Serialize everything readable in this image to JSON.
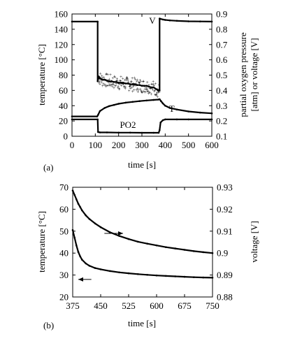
{
  "chart_data": [
    {
      "panel_label": "(a)",
      "type": "line",
      "xlabel": "time [s]",
      "ylabel_left": "temperature [°C]",
      "ylabel_right_line1": "partial oxygen pressure",
      "ylabel_right_line2": "[atm] or voltage [V]",
      "xlim": [
        0,
        600
      ],
      "ylim_left": [
        0,
        160
      ],
      "ylim_right": [
        0.1,
        0.9
      ],
      "x_ticks": [
        0,
        100,
        200,
        300,
        400,
        500,
        600
      ],
      "y_left_ticks": [
        0,
        20,
        40,
        60,
        80,
        100,
        120,
        140,
        160
      ],
      "y_right_ticks": [
        0.1,
        0.2,
        0.3,
        0.4,
        0.5,
        0.6,
        0.7,
        0.8,
        0.9
      ],
      "annotations": [
        {
          "text": "V",
          "x": 345,
          "y": 147,
          "axis": "left"
        },
        {
          "text": "T",
          "x": 428,
          "y": 32,
          "axis": "left"
        },
        {
          "text": "PO2",
          "x": 240,
          "y": 11,
          "axis": "left"
        }
      ],
      "series": [
        {
          "label": "V",
          "axis": "right",
          "noisy": true,
          "x": [
            0,
            110,
            110,
            115,
            120,
            130,
            140,
            150,
            160,
            170,
            180,
            190,
            200,
            210,
            220,
            230,
            240,
            250,
            260,
            270,
            280,
            290,
            300,
            310,
            320,
            330,
            340,
            350,
            360,
            370,
            376,
            376,
            380,
            390,
            400,
            420,
            450,
            500,
            550,
            600
          ],
          "y": [
            0.85,
            0.85,
            0.46,
            0.49,
            0.48,
            0.47,
            0.47,
            0.465,
            0.46,
            0.46,
            0.455,
            0.455,
            0.45,
            0.45,
            0.45,
            0.445,
            0.445,
            0.44,
            0.44,
            0.44,
            0.435,
            0.435,
            0.43,
            0.43,
            0.43,
            0.425,
            0.42,
            0.42,
            0.41,
            0.4,
            0.4,
            0.87,
            0.868,
            0.864,
            0.861,
            0.858,
            0.855,
            0.852,
            0.851,
            0.85
          ]
        },
        {
          "label": "T",
          "axis": "left",
          "noisy": false,
          "x": [
            0,
            108,
            112,
            120,
            140,
            160,
            180,
            200,
            230,
            260,
            290,
            320,
            350,
            370,
            376,
            382,
            390,
            400,
            420,
            450,
            500,
            550,
            600
          ],
          "y": [
            26,
            26,
            28,
            33,
            37,
            39.5,
            41,
            42.5,
            44,
            45,
            46,
            46.8,
            47.5,
            48,
            48.5,
            46,
            43,
            40,
            37,
            35,
            32.5,
            31,
            30
          ]
        },
        {
          "label": "PO2",
          "axis": "right",
          "noisy": false,
          "x": [
            0,
            110,
            112,
            120,
            150,
            200,
            250,
            300,
            350,
            372,
            376,
            380,
            390,
            400,
            450,
            500,
            600
          ],
          "y": [
            0.21,
            0.21,
            0.128,
            0.125,
            0.125,
            0.124,
            0.124,
            0.123,
            0.123,
            0.123,
            0.14,
            0.19,
            0.205,
            0.21,
            0.21,
            0.21,
            0.21
          ]
        }
      ]
    },
    {
      "panel_label": "(b)",
      "type": "line",
      "xlabel": "time [s]",
      "ylabel_left": "temperature [°C]",
      "ylabel_right": "voltage [V]",
      "xlim": [
        375,
        750
      ],
      "ylim_left": [
        20,
        70
      ],
      "ylim_right": [
        0.88,
        0.93
      ],
      "x_ticks": [
        375,
        450,
        525,
        600,
        675,
        750
      ],
      "y_left_ticks": [
        20,
        30,
        40,
        50,
        60,
        70
      ],
      "y_right_ticks": [
        0.88,
        0.89,
        0.9,
        0.91,
        0.92,
        0.93
      ],
      "arrows": [
        {
          "direction": "right",
          "x_from": 460,
          "x_to": 510,
          "y": 49,
          "axis": "left"
        },
        {
          "direction": "left",
          "x_from": 425,
          "x_to": 390,
          "y": 28,
          "axis": "left"
        }
      ],
      "series": [
        {
          "label": "voltage",
          "axis": "right",
          "x": [
            375,
            380,
            385,
            390,
            395,
            400,
            410,
            420,
            435,
            450,
            475,
            500,
            525,
            550,
            575,
            600,
            625,
            650,
            675,
            700,
            725,
            750
          ],
          "y": [
            0.9285,
            0.9265,
            0.9245,
            0.9225,
            0.921,
            0.9195,
            0.9172,
            0.9155,
            0.9135,
            0.9118,
            0.9095,
            0.9078,
            0.9064,
            0.9052,
            0.9043,
            0.9035,
            0.9027,
            0.9021,
            0.9015,
            0.9009,
            0.9004,
            0.9
          ]
        },
        {
          "label": "temperature",
          "axis": "left",
          "x": [
            375,
            380,
            385,
            390,
            395,
            400,
            410,
            420,
            435,
            450,
            475,
            500,
            525,
            550,
            575,
            600,
            625,
            650,
            675,
            700,
            725,
            750
          ],
          "y": [
            50.5,
            47,
            43.5,
            40.5,
            38.5,
            37,
            35.3,
            34.2,
            33.2,
            32.6,
            31.8,
            31.2,
            30.8,
            30.4,
            30.1,
            29.8,
            29.6,
            29.4,
            29.2,
            29.0,
            28.9,
            28.8
          ]
        }
      ]
    }
  ]
}
